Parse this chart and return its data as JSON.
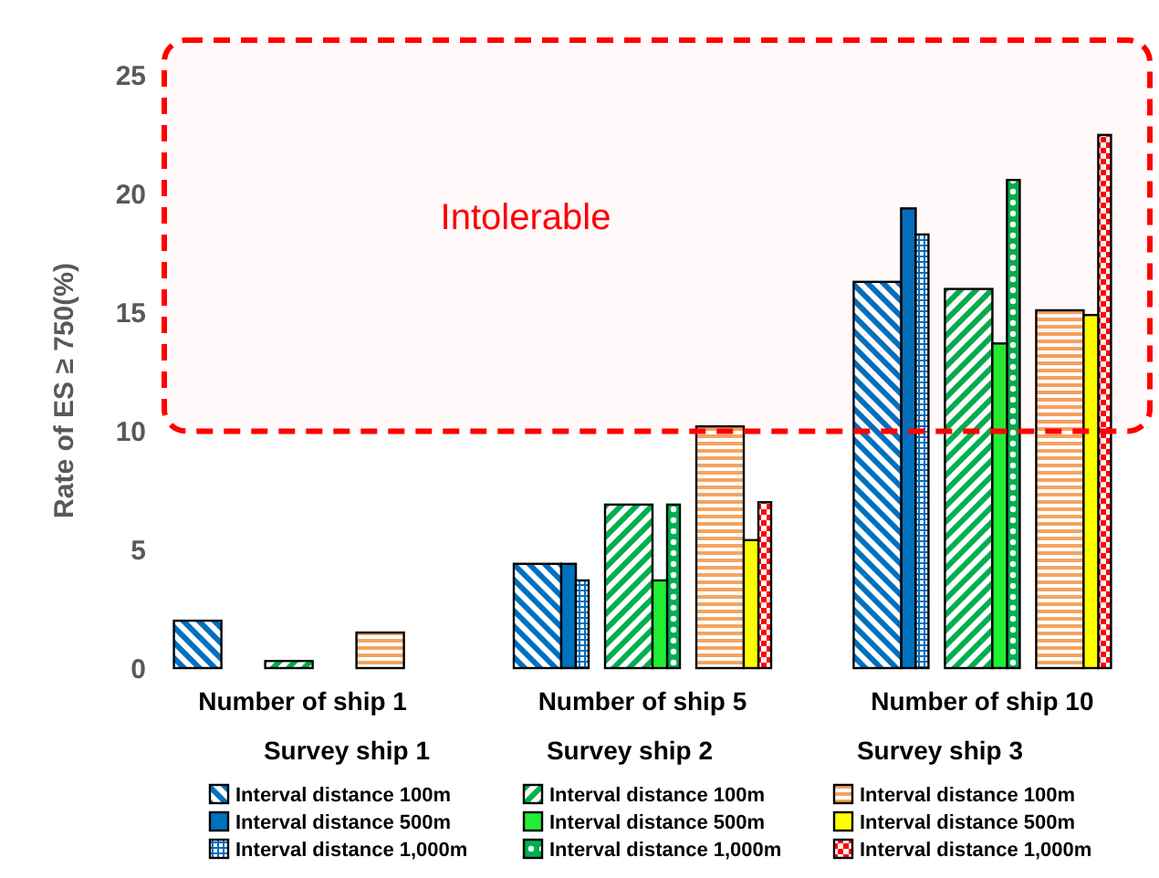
{
  "chart_data": {
    "type": "bar",
    "ylabel": "Rate of ES ≥ 750(%)",
    "categories": [
      "Number of ship 1",
      "Number of ship 5",
      "Number of ship 10"
    ],
    "series": [
      {
        "name": "Interval distance 100m",
        "color": "#0070c0",
        "values": [
          2.0,
          4.4,
          16.3
        ]
      },
      {
        "name": "Interval distance 500m",
        "color": "#0070c0",
        "values": [
          0,
          4.4,
          19.4
        ]
      },
      {
        "name": "Interval distance 1,000m",
        "color": "#0070c0",
        "values": [
          0,
          3.7,
          18.3
        ]
      },
      {
        "name": "Interval distance 100m",
        "color": "#00b050",
        "values": [
          0.3,
          6.9,
          16.0
        ]
      },
      {
        "name": "Interval distance 500m",
        "color": "#22ee33",
        "values": [
          0,
          3.7,
          13.7
        ]
      },
      {
        "name": "Interval distance 1,000m",
        "color": "#00b050",
        "values": [
          0,
          6.9,
          20.6
        ]
      },
      {
        "name": "Interval distance 100m",
        "color": "#f4a460",
        "values": [
          1.5,
          10.2,
          15.1
        ]
      },
      {
        "name": "Interval distance 500m",
        "color": "#ffff00",
        "values": [
          0,
          5.4,
          14.9
        ]
      },
      {
        "name": "Interval distance 1,000m",
        "color": "#ff0000",
        "values": [
          0,
          7.0,
          22.5
        ]
      }
    ],
    "ylim": [
      0,
      26.5
    ],
    "yticks": [
      0,
      5,
      10,
      15,
      20,
      25
    ],
    "grid": false,
    "legend": "bottom",
    "bands": [
      {
        "axis": "y",
        "from": 10,
        "to": 26.5,
        "label": "Intolerable",
        "color": "#ff0000"
      }
    ],
    "annotations": [
      "Survey ship 1",
      "Survey ship 2",
      "Survey ship 3"
    ]
  }
}
